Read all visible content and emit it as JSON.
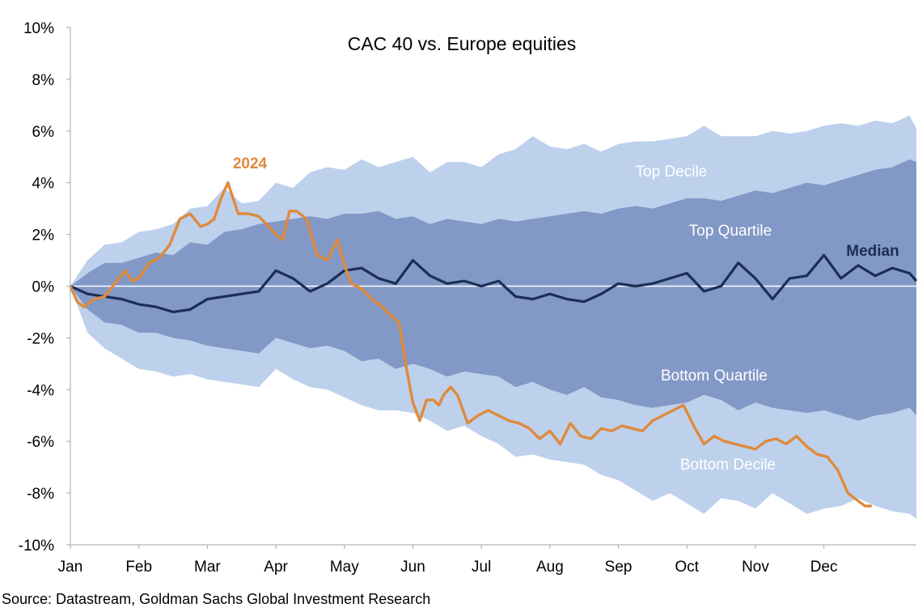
{
  "chart_data": {
    "type": "area",
    "title": "CAC 40 vs. Europe equities",
    "xlabel": "",
    "ylabel": "",
    "ylim": [
      -10,
      10
    ],
    "yticks": [
      -10,
      -8,
      -6,
      -4,
      -2,
      0,
      2,
      4,
      6,
      8,
      10
    ],
    "ytick_labels": [
      "-10%",
      "-8%",
      "-6%",
      "-4%",
      "-2%",
      "0%",
      "2%",
      "4%",
      "6%",
      "8%",
      "10%"
    ],
    "xlim": [
      0,
      12.35
    ],
    "xtick_labels": [
      "Jan",
      "Feb",
      "Mar",
      "Apr",
      "May",
      "Jun",
      "Jul",
      "Aug",
      "Sep",
      "Oct",
      "Nov",
      "Dec"
    ],
    "grid": false,
    "x": [
      0,
      0.25,
      0.5,
      0.75,
      1,
      1.25,
      1.5,
      1.75,
      2,
      2.25,
      2.5,
      2.75,
      3,
      3.25,
      3.5,
      3.75,
      4,
      4.25,
      4.5,
      4.75,
      5,
      5.25,
      5.5,
      5.75,
      6,
      6.25,
      6.5,
      6.75,
      7,
      7.25,
      7.5,
      7.75,
      8,
      8.25,
      8.5,
      8.75,
      9,
      9.25,
      9.5,
      9.75,
      10,
      10.25,
      10.5,
      10.75,
      11,
      11.25,
      11.5,
      11.75,
      12,
      12.25,
      12.35
    ],
    "series": [
      {
        "name": "Top Decile",
        "color": "#bdd1ec",
        "values": [
          0,
          1.0,
          1.6,
          1.7,
          2.1,
          2.2,
          2.4,
          3.0,
          3.1,
          3.8,
          3.2,
          3.3,
          4.0,
          3.8,
          4.4,
          4.6,
          4.5,
          4.9,
          4.6,
          4.8,
          5.0,
          4.4,
          4.8,
          4.8,
          4.6,
          5.1,
          5.3,
          5.8,
          5.4,
          5.3,
          5.5,
          5.2,
          5.5,
          5.6,
          5.6,
          5.7,
          5.8,
          6.2,
          5.8,
          5.8,
          5.8,
          6.0,
          5.9,
          6.0,
          6.2,
          6.3,
          6.2,
          6.4,
          6.3,
          6.6,
          6.1
        ]
      },
      {
        "name": "Top Quartile",
        "color": "#8298c6",
        "values": [
          0,
          0.5,
          0.9,
          0.9,
          1.1,
          1.3,
          1.2,
          1.7,
          1.6,
          2.1,
          2.2,
          2.4,
          2.5,
          2.6,
          2.7,
          2.6,
          2.8,
          2.8,
          2.9,
          2.6,
          2.7,
          2.4,
          2.6,
          2.5,
          2.4,
          2.6,
          2.5,
          2.6,
          2.7,
          2.8,
          2.9,
          2.8,
          3.0,
          3.1,
          3.0,
          3.2,
          3.4,
          3.4,
          3.3,
          3.5,
          3.7,
          3.6,
          3.8,
          4.0,
          3.9,
          4.1,
          4.3,
          4.5,
          4.6,
          4.9,
          4.8
        ]
      },
      {
        "name": "Median",
        "color": "#1b2e55",
        "values": [
          0,
          -0.3,
          -0.4,
          -0.5,
          -0.7,
          -0.8,
          -1.0,
          -0.9,
          -0.5,
          -0.4,
          -0.3,
          -0.2,
          0.6,
          0.3,
          -0.2,
          0.1,
          0.6,
          0.7,
          0.3,
          0.1,
          1.0,
          0.4,
          0.1,
          0.2,
          0.0,
          0.2,
          -0.4,
          -0.5,
          -0.3,
          -0.5,
          -0.6,
          -0.3,
          0.1,
          0.0,
          0.1,
          0.3,
          0.5,
          -0.2,
          0.0,
          0.9,
          0.3,
          -0.5,
          0.3,
          0.4,
          1.2,
          0.3,
          0.8,
          0.4,
          0.7,
          0.5,
          0.2
        ]
      },
      {
        "name": "Bottom Quartile",
        "color": "#8298c6",
        "values": [
          0,
          -0.9,
          -1.4,
          -1.5,
          -1.8,
          -1.8,
          -2.0,
          -2.1,
          -2.3,
          -2.4,
          -2.5,
          -2.6,
          -2.0,
          -2.2,
          -2.4,
          -2.3,
          -2.5,
          -2.9,
          -2.8,
          -3.2,
          -3.0,
          -3.2,
          -3.5,
          -3.3,
          -3.4,
          -3.5,
          -3.9,
          -3.7,
          -4.0,
          -4.2,
          -3.9,
          -4.3,
          -4.4,
          -4.6,
          -4.7,
          -4.6,
          -4.5,
          -4.2,
          -4.4,
          -4.8,
          -4.5,
          -4.7,
          -4.8,
          -4.9,
          -4.8,
          -5.0,
          -5.2,
          -5.0,
          -4.9,
          -4.7,
          -5.0
        ]
      },
      {
        "name": "Bottom Decile",
        "color": "#bdd1ec",
        "values": [
          0,
          -1.8,
          -2.4,
          -2.8,
          -3.2,
          -3.3,
          -3.5,
          -3.4,
          -3.6,
          -3.7,
          -3.8,
          -3.9,
          -3.2,
          -3.6,
          -3.9,
          -4.0,
          -4.3,
          -4.6,
          -4.8,
          -4.8,
          -4.9,
          -5.2,
          -5.6,
          -5.4,
          -5.8,
          -6.1,
          -6.6,
          -6.5,
          -6.7,
          -6.8,
          -6.9,
          -7.3,
          -7.5,
          -7.9,
          -8.3,
          -8.0,
          -8.4,
          -8.8,
          -8.2,
          -8.3,
          -8.6,
          -8.0,
          -8.4,
          -8.8,
          -8.6,
          -8.5,
          -8.2,
          -8.5,
          -8.7,
          -8.8,
          -9.0
        ]
      },
      {
        "name": "2024",
        "color": "#df8a3c",
        "x": [
          0,
          0.1,
          0.2,
          0.35,
          0.5,
          0.65,
          0.8,
          0.9,
          1.0,
          1.15,
          1.3,
          1.45,
          1.6,
          1.75,
          1.9,
          2.0,
          2.1,
          2.2,
          2.3,
          2.45,
          2.6,
          2.75,
          2.9,
          3.0,
          3.1,
          3.2,
          3.3,
          3.45,
          3.6,
          3.75,
          3.9,
          4.0,
          4.1,
          4.25,
          4.4,
          4.55,
          4.7,
          4.8,
          4.9,
          5.0,
          5.1,
          5.2,
          5.3,
          5.38,
          5.45,
          5.55,
          5.65,
          5.8,
          5.95,
          6.1,
          6.25,
          6.4,
          6.55,
          6.7,
          6.85,
          7.0,
          7.15,
          7.3,
          7.45,
          7.6,
          7.75,
          7.9,
          8.05,
          8.2,
          8.35,
          8.5,
          8.65,
          8.8,
          8.95,
          9.1,
          9.25,
          9.4,
          9.55,
          9.7,
          9.85,
          10.0,
          10.15,
          10.3,
          10.45,
          10.6,
          10.75,
          10.9,
          11.05,
          11.2,
          11.35,
          11.5,
          11.6,
          11.7
        ],
        "values": [
          0,
          -0.6,
          -0.8,
          -0.5,
          -0.4,
          0.1,
          0.6,
          0.2,
          0.3,
          0.9,
          1.1,
          1.6,
          2.6,
          2.8,
          2.3,
          2.4,
          2.6,
          3.4,
          4.0,
          2.8,
          2.8,
          2.7,
          2.3,
          2.0,
          1.8,
          2.9,
          2.9,
          2.6,
          1.2,
          1.0,
          1.8,
          0.8,
          0.1,
          -0.1,
          -0.5,
          -0.8,
          -1.2,
          -1.4,
          -3.1,
          -4.5,
          -5.2,
          -4.4,
          -4.4,
          -4.6,
          -4.2,
          -3.9,
          -4.2,
          -5.3,
          -5.0,
          -4.8,
          -5.0,
          -5.2,
          -5.3,
          -5.5,
          -5.9,
          -5.6,
          -6.1,
          -5.3,
          -5.8,
          -5.9,
          -5.5,
          -5.6,
          -5.4,
          -5.5,
          -5.6,
          -5.2,
          -5.0,
          -4.8,
          -4.6,
          -5.4,
          -6.1,
          -5.8,
          -6.0,
          -6.1,
          -6.2,
          -6.3,
          -6.0,
          -5.9,
          -6.1,
          -5.8,
          -6.2,
          -6.5,
          -6.6,
          -7.1,
          -8.0,
          -8.3,
          -8.5,
          -8.5
        ]
      }
    ],
    "annotations": {
      "top_decile": "Top Decile",
      "top_quartile": "Top Quartile",
      "median": "Median",
      "bottom_quartile": "Bottom Quartile",
      "bottom_decile": "Bottom Decile",
      "year": "2024"
    },
    "zero_line_color": "#ffffff"
  },
  "source": "Source: Datastream, Goldman Sachs Global Investment Research"
}
